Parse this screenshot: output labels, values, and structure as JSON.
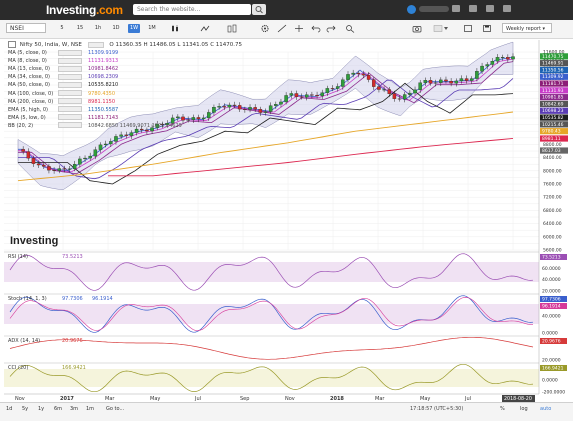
{
  "app": {
    "logo_text": "Investing",
    "logo_suffix": ".com",
    "search_placeholder": "Search the website...",
    "symbol": "NSEI",
    "interval_dropdown": "Weekly report"
  },
  "toolbar": {
    "timeframes": [
      "5",
      "15",
      "1h",
      "1D",
      "1W",
      "1M"
    ],
    "active_index": 4
  },
  "legend": {
    "header": {
      "title": "Nifty 50, India, W, NSE",
      "o": "O 11360.35",
      "h": "H 11486.05",
      "l": "L 11341.05",
      "c": "C 11470.75"
    },
    "items": [
      {
        "name": "MA (5, close, 0)",
        "value": "11309.9199",
        "color": "#3a5fcd"
      },
      {
        "name": "MA (8, close, 0)",
        "value": "11131.9313",
        "color": "#c83cc8"
      },
      {
        "name": "MA (13, close, 0)",
        "value": "10981.8462",
        "color": "#8c2a8c"
      },
      {
        "name": "MA (34, close, 0)",
        "value": "10698.2309",
        "color": "#5a3cb4"
      },
      {
        "name": "MA (50, close, 0)",
        "value": "10535.8210",
        "color": "#1e1e1e"
      },
      {
        "name": "MA (100, close, 0)",
        "value": "9780.4350",
        "color": "#e6a628"
      },
      {
        "name": "MA (200, close, 0)",
        "value": "8981.1150",
        "color": "#dc2850"
      },
      {
        "name": "EMA (5, high, 0)",
        "value": "11350.5587",
        "color": "#1e64b4"
      },
      {
        "name": "EMA (5, low, 0)",
        "value": "11181.7143",
        "color": "#8c1e78"
      },
      {
        "name": "BB (20, 2)",
        "value": "10842.6850  11469.9071  10215.4629",
        "color": "#555555"
      }
    ]
  },
  "price_axis": {
    "labels": [
      "11600.00",
      "11400.00",
      "11200.00",
      "11000.00",
      "10800.00",
      "10600.00",
      "10400.00",
      "10200.00",
      "10000.00",
      "9800.00",
      "9600.00",
      "9400.00",
      "9200.00",
      "9000.00",
      "8800.00",
      "8600.00",
      "8400.00",
      "8200.00",
      "8000.00",
      "7800.00",
      "7600.00",
      "7400.00",
      "7200.00",
      "7000.00",
      "6800.00",
      "6600.00",
      "6400.00",
      "6200.00",
      "6000.00",
      "5800.00",
      "5600.00"
    ],
    "badges": [
      {
        "text": "11470.75",
        "color": "#2e9e3a"
      },
      {
        "text": "11469.91",
        "color": "#555555"
      },
      {
        "text": "11350.56",
        "color": "#1e64b4"
      },
      {
        "text": "11309.92",
        "color": "#3a5fcd"
      },
      {
        "text": "11181.71",
        "color": "#8c1e78"
      },
      {
        "text": "11131.93",
        "color": "#c83cc8"
      },
      {
        "text": "10981.85",
        "color": "#8c2a8c"
      },
      {
        "text": "10842.69",
        "color": "#555555"
      },
      {
        "text": "10698.23",
        "color": "#5a3cb4"
      },
      {
        "text": "10535.82",
        "color": "#1e1e1e"
      },
      {
        "text": "10215.46",
        "color": "#555555"
      },
      {
        "text": "9780.43",
        "color": "#e6a628"
      },
      {
        "text": "8981.11",
        "color": "#dc2850"
      },
      {
        "text": "8617.03",
        "color": "#666666"
      }
    ]
  },
  "panels": {
    "rsi": {
      "label": "RSI (14)",
      "value": "73.5213",
      "axis": [
        "80.0000",
        "60.0000",
        "40.0000",
        "20.0000"
      ],
      "badge": "73.5213"
    },
    "stoch": {
      "label": "Stoch (14, 1, 3)",
      "value1": "97.7306",
      "value2": "96.1914",
      "axis": [
        "80.0000",
        "40.0000",
        "0.0000"
      ],
      "badge1": "97.7306",
      "badge2": "96.1914"
    },
    "adx": {
      "label": "ADX (14, 14)",
      "value": "20.9676",
      "axis": [
        "40.0000",
        "20.0000"
      ],
      "badge": "20.9676"
    },
    "cci": {
      "label": "CCI (20)",
      "value": "166.9421",
      "axis": [
        "200.0000",
        "0.0000",
        "-200.0000"
      ],
      "badge": "166.9421"
    }
  },
  "time_axis": {
    "labels": [
      "Nov",
      "2017",
      "Mar",
      "May",
      "Jul",
      "Sep",
      "Nov",
      "2018",
      "Mar",
      "May",
      "Jul"
    ],
    "bold": [
      1,
      7
    ],
    "current_date": "2018-08-20"
  },
  "navigator": {
    "ranges": [
      "1d",
      "5y",
      "1y",
      "6m",
      "3m",
      "1m"
    ],
    "goto": "Go to...",
    "time": "17:18:57 (UTC+5:30)",
    "scale_labels": [
      "%",
      "log",
      "auto"
    ]
  },
  "watermark": "Investing",
  "chart_data": {
    "type": "line",
    "title": "Nifty 50, India, W, NSE",
    "series": [
      {
        "name": "Nifty 50 (Close)",
        "values": [
          {
            "x": "2016-10",
            "y": 8650
          },
          {
            "x": "2016-11",
            "y": 8100
          },
          {
            "x": "2016-12",
            "y": 8000
          },
          {
            "x": "2017-01",
            "y": 8400
          },
          {
            "x": "2017-02",
            "y": 8900
          },
          {
            "x": "2017-03",
            "y": 9170
          },
          {
            "x": "2017-04",
            "y": 9300
          },
          {
            "x": "2017-05",
            "y": 9600
          },
          {
            "x": "2017-06",
            "y": 9550
          },
          {
            "x": "2017-07",
            "y": 10000
          },
          {
            "x": "2017-08",
            "y": 9900
          },
          {
            "x": "2017-09",
            "y": 9800
          },
          {
            "x": "2017-10",
            "y": 10300
          },
          {
            "x": "2017-11",
            "y": 10250
          },
          {
            "x": "2017-12",
            "y": 10500
          },
          {
            "x": "2018-01",
            "y": 11050
          },
          {
            "x": "2018-02",
            "y": 10500
          },
          {
            "x": "2018-03",
            "y": 10150
          },
          {
            "x": "2018-04",
            "y": 10700
          },
          {
            "x": "2018-05",
            "y": 10700
          },
          {
            "x": "2018-06",
            "y": 10750
          },
          {
            "x": "2018-07",
            "y": 11350
          },
          {
            "x": "2018-08",
            "y": 11470.75
          }
        ]
      },
      {
        "name": "MA (100, close, 0)",
        "values": [
          {
            "x": "2016-10",
            "y": 7700
          },
          {
            "x": "2017-01",
            "y": 7900
          },
          {
            "x": "2017-04",
            "y": 8200
          },
          {
            "x": "2017-07",
            "y": 8550
          },
          {
            "x": "2017-10",
            "y": 8850
          },
          {
            "x": "2018-01",
            "y": 9200
          },
          {
            "x": "2018-04",
            "y": 9450
          },
          {
            "x": "2018-08",
            "y": 9780.435
          }
        ]
      },
      {
        "name": "MA (200, close, 0)",
        "values": [
          {
            "x": "2017-04",
            "y": 7850
          },
          {
            "x": "2017-07",
            "y": 8050
          },
          {
            "x": "2017-10",
            "y": 8250
          },
          {
            "x": "2018-01",
            "y": 8500
          },
          {
            "x": "2018-04",
            "y": 8730
          },
          {
            "x": "2018-08",
            "y": 8981.115
          }
        ]
      }
    ],
    "ylim": [
      5600,
      11600
    ],
    "ylabel": "",
    "xlabel": ""
  }
}
